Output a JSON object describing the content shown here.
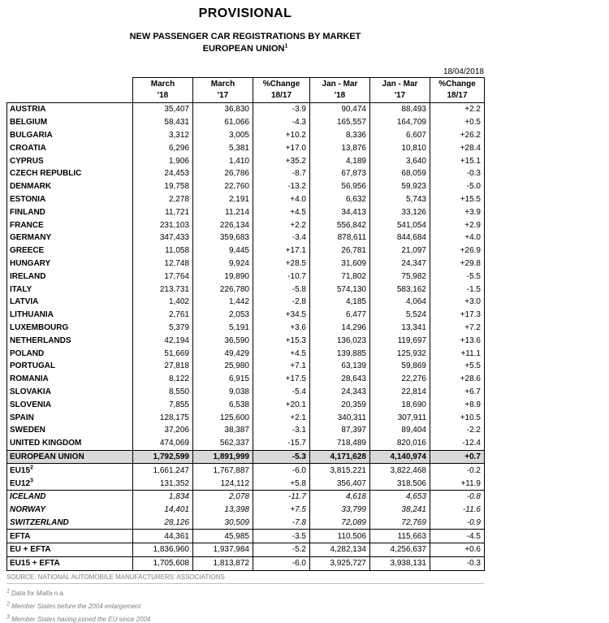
{
  "header": {
    "title": "PROVISIONAL",
    "subtitle1": "NEW PASSENGER CAR REGISTRATIONS BY MARKET",
    "subtitle2": "EUROPEAN UNION",
    "subtitle2_sup": "1",
    "date": "18/04/2018"
  },
  "table": {
    "columns": [
      {
        "line1": "March",
        "line2": "'18"
      },
      {
        "line1": "March",
        "line2": "'17"
      },
      {
        "line1": "%Change",
        "line2": "18/17"
      },
      {
        "line1": "Jan - Mar",
        "line2": "'18"
      },
      {
        "line1": "Jan - Mar",
        "line2": "'17"
      },
      {
        "line1": "%Change",
        "line2": "18/17"
      }
    ],
    "rows": [
      {
        "name": "AUSTRIA",
        "values": [
          "35,407",
          "36,830",
          "-3.9",
          "90,474",
          "88,493",
          "+2.2"
        ],
        "style": ""
      },
      {
        "name": "BELGIUM",
        "values": [
          "58,431",
          "61,066",
          "-4.3",
          "165,557",
          "164,709",
          "+0.5"
        ],
        "style": ""
      },
      {
        "name": "BULGARIA",
        "values": [
          "3,312",
          "3,005",
          "+10.2",
          "8,336",
          "6,607",
          "+26.2"
        ],
        "style": ""
      },
      {
        "name": "CROATIA",
        "values": [
          "6,296",
          "5,381",
          "+17.0",
          "13,876",
          "10,810",
          "+28.4"
        ],
        "style": ""
      },
      {
        "name": "CYPRUS",
        "values": [
          "1,906",
          "1,410",
          "+35.2",
          "4,189",
          "3,640",
          "+15.1"
        ],
        "style": ""
      },
      {
        "name": "CZECH REPUBLIC",
        "values": [
          "24,453",
          "26,786",
          "-8.7",
          "67,873",
          "68,059",
          "-0.3"
        ],
        "style": ""
      },
      {
        "name": "DENMARK",
        "values": [
          "19,758",
          "22,760",
          "-13.2",
          "56,956",
          "59,923",
          "-5.0"
        ],
        "style": ""
      },
      {
        "name": "ESTONIA",
        "values": [
          "2,278",
          "2,191",
          "+4.0",
          "6,632",
          "5,743",
          "+15.5"
        ],
        "style": ""
      },
      {
        "name": "FINLAND",
        "values": [
          "11,721",
          "11,214",
          "+4.5",
          "34,413",
          "33,126",
          "+3.9"
        ],
        "style": ""
      },
      {
        "name": "FRANCE",
        "values": [
          "231,103",
          "226,134",
          "+2.2",
          "556,842",
          "541,054",
          "+2.9"
        ],
        "style": ""
      },
      {
        "name": "GERMANY",
        "values": [
          "347,433",
          "359,683",
          "-3.4",
          "878,611",
          "844,684",
          "+4.0"
        ],
        "style": ""
      },
      {
        "name": "GREECE",
        "values": [
          "11,058",
          "9,445",
          "+17.1",
          "26,781",
          "21,097",
          "+26.9"
        ],
        "style": ""
      },
      {
        "name": "HUNGARY",
        "values": [
          "12,748",
          "9,924",
          "+28.5",
          "31,609",
          "24,347",
          "+29.8"
        ],
        "style": ""
      },
      {
        "name": "IRELAND",
        "values": [
          "17,764",
          "19,890",
          "-10.7",
          "71,802",
          "75,982",
          "-5.5"
        ],
        "style": ""
      },
      {
        "name": "ITALY",
        "values": [
          "213,731",
          "226,780",
          "-5.8",
          "574,130",
          "583,162",
          "-1.5"
        ],
        "style": ""
      },
      {
        "name": "LATVIA",
        "values": [
          "1,402",
          "1,442",
          "-2.8",
          "4,185",
          "4,064",
          "+3.0"
        ],
        "style": ""
      },
      {
        "name": "LITHUANIA",
        "values": [
          "2,761",
          "2,053",
          "+34.5",
          "6,477",
          "5,524",
          "+17.3"
        ],
        "style": ""
      },
      {
        "name": "LUXEMBOURG",
        "values": [
          "5,379",
          "5,191",
          "+3.6",
          "14,296",
          "13,341",
          "+7.2"
        ],
        "style": ""
      },
      {
        "name": "NETHERLANDS",
        "values": [
          "42,194",
          "36,590",
          "+15.3",
          "136,023",
          "119,697",
          "+13.6"
        ],
        "style": ""
      },
      {
        "name": "POLAND",
        "values": [
          "51,669",
          "49,429",
          "+4.5",
          "139,885",
          "125,932",
          "+11.1"
        ],
        "style": ""
      },
      {
        "name": "PORTUGAL",
        "values": [
          "27,818",
          "25,980",
          "+7.1",
          "63,139",
          "59,869",
          "+5.5"
        ],
        "style": ""
      },
      {
        "name": "ROMANIA",
        "values": [
          "8,122",
          "6,915",
          "+17.5",
          "28,643",
          "22,276",
          "+28.6"
        ],
        "style": ""
      },
      {
        "name": "SLOVAKIA",
        "values": [
          "8,550",
          "9,038",
          "-5.4",
          "24,343",
          "22,814",
          "+6.7"
        ],
        "style": ""
      },
      {
        "name": "SLOVENIA",
        "values": [
          "7,855",
          "6,538",
          "+20.1",
          "20,359",
          "18,690",
          "+8.9"
        ],
        "style": ""
      },
      {
        "name": "SPAIN",
        "values": [
          "128,175",
          "125,600",
          "+2.1",
          "340,311",
          "307,911",
          "+10.5"
        ],
        "style": ""
      },
      {
        "name": "SWEDEN",
        "values": [
          "37,206",
          "38,387",
          "-3.1",
          "87,397",
          "89,404",
          "-2.2"
        ],
        "style": ""
      },
      {
        "name": "UNITED KINGDOM",
        "values": [
          "474,069",
          "562,337",
          "-15.7",
          "718,489",
          "820,016",
          "-12.4"
        ],
        "style": ""
      },
      {
        "name": "EUROPEAN UNION",
        "values": [
          "1,792,599",
          "1,891,999",
          "-5.3",
          "4,171,628",
          "4,140,974",
          "+0.7"
        ],
        "style": "eu"
      },
      {
        "name": "EU15",
        "sup": "2",
        "values": [
          "1,661,247",
          "1,767,887",
          "-6.0",
          "3,815,221",
          "3,822,468",
          "-0.2"
        ],
        "style": ""
      },
      {
        "name": "EU12",
        "sup": "3",
        "values": [
          "131,352",
          "124,112",
          "+5.8",
          "356,407",
          "318,506",
          "+11.9"
        ],
        "style": ""
      },
      {
        "name": "ICELAND",
        "values": [
          "1,834",
          "2,078",
          "-11.7",
          "4,618",
          "4,653",
          "-0.8"
        ],
        "style": "it sep"
      },
      {
        "name": "NORWAY",
        "values": [
          "14,401",
          "13,398",
          "+7.5",
          "33,799",
          "38,241",
          "-11.6"
        ],
        "style": "it"
      },
      {
        "name": "SWITZERLAND",
        "values": [
          "28,126",
          "30,509",
          "-7.8",
          "72,089",
          "72,769",
          "-0.9"
        ],
        "style": "it"
      },
      {
        "name": "EFTA",
        "values": [
          "44,361",
          "45,985",
          "-3.5",
          "110,506",
          "115,663",
          "-4.5"
        ],
        "style": "sep"
      },
      {
        "name": "EU + EFTA",
        "values": [
          "1,836,960",
          "1,937,984",
          "-5.2",
          "4,282,134",
          "4,256,637",
          "+0.6"
        ],
        "style": "sep"
      },
      {
        "name": "EU15 + EFTA",
        "values": [
          "1,705,608",
          "1,813,872",
          "-6.0",
          "3,925,727",
          "3,938,131",
          "-0.3"
        ],
        "style": "sep"
      }
    ]
  },
  "footer": {
    "source": "SOURCE: NATIONAL AUTOMOBILE MANUFACTURERS' ASSOCIATIONS",
    "notes": [
      {
        "sup": "1",
        "text": "Data for Malta n.a."
      },
      {
        "sup": "2",
        "text": "Member States before the 2004 enlargement"
      },
      {
        "sup": "3",
        "text": "Member States having joined the EU since 2004"
      }
    ]
  }
}
